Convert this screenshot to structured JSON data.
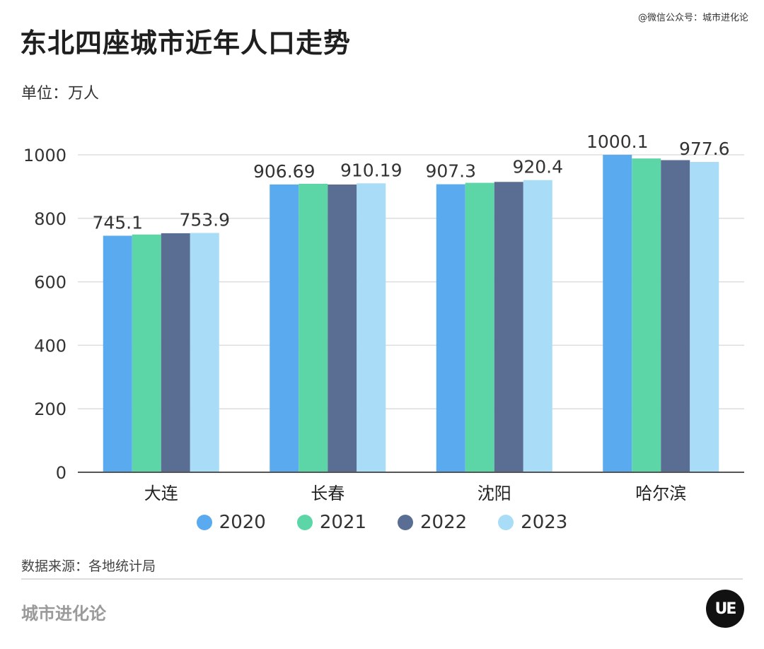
{
  "header": {
    "watermark": "@微信公众号：城市进化论",
    "title": "东北四座城市近年人口走势",
    "unit": "单位：万人"
  },
  "footer": {
    "source": "数据来源：各地统计局",
    "brand": "城市进化论",
    "logo_text": "UE"
  },
  "colors": {
    "2020": "#5aaaf0",
    "2021": "#5cd6a6",
    "2022": "#5a6d93",
    "2023": "#a8dcf7"
  },
  "chart_data": {
    "type": "bar",
    "categories": [
      "大连",
      "长春",
      "沈阳",
      "哈尔滨"
    ],
    "series": [
      {
        "name": "2020",
        "values": [
          745.1,
          906.69,
          907.3,
          1000.1
        ]
      },
      {
        "name": "2021",
        "values": [
          749,
          908.7,
          911.8,
          988.5
        ]
      },
      {
        "name": "2022",
        "values": [
          753,
          906.54,
          914.7,
          983.3
        ]
      },
      {
        "name": "2023",
        "values": [
          753.9,
          910.19,
          920.4,
          977.6
        ]
      }
    ],
    "data_labels": [
      {
        "category": "大连",
        "series": "2020",
        "text": "745.1"
      },
      {
        "category": "大连",
        "series": "2023",
        "text": "753.9"
      },
      {
        "category": "长春",
        "series": "2020",
        "text": "906.69"
      },
      {
        "category": "长春",
        "series": "2023",
        "text": "910.19"
      },
      {
        "category": "沈阳",
        "series": "2020",
        "text": "907.3"
      },
      {
        "category": "沈阳",
        "series": "2023",
        "text": "920.4"
      },
      {
        "category": "哈尔滨",
        "series": "2020",
        "text": "1000.1"
      },
      {
        "category": "哈尔滨",
        "series": "2023",
        "text": "977.6"
      }
    ],
    "yticks": [
      0,
      200,
      400,
      600,
      800,
      1000
    ],
    "ylim": [
      0,
      1000
    ],
    "grid": true,
    "legend_position": "bottom"
  }
}
